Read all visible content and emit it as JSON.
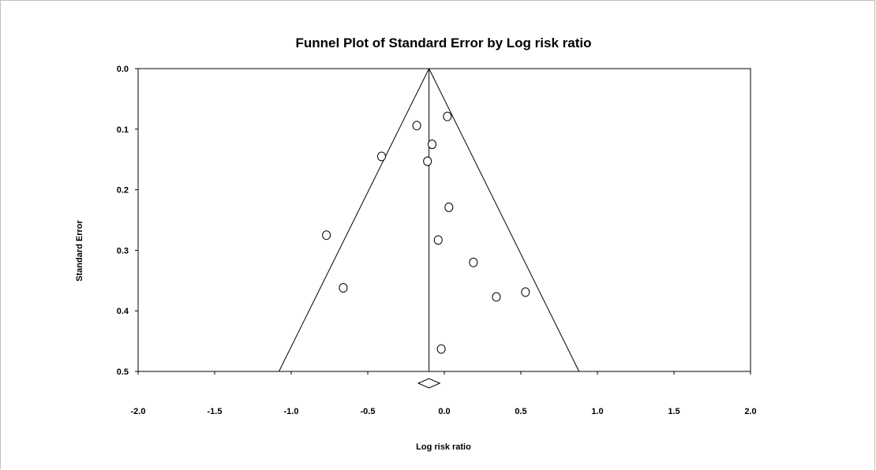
{
  "chart_data": {
    "type": "scatter",
    "title": "Funnel Plot of Standard Error by Log risk ratio",
    "xlabel": "Log risk ratio",
    "ylabel": "Standard Error",
    "xlim": [
      -2.0,
      2.0
    ],
    "ylim": [
      0.0,
      0.5
    ],
    "y_inverted": true,
    "grid": false,
    "x_ticks": [
      "-2.0",
      "-1.5",
      "-1.0",
      "-0.5",
      "0.0",
      "0.5",
      "1.0",
      "1.5",
      "2.0"
    ],
    "y_ticks": [
      "0.0",
      "0.1",
      "0.2",
      "0.3",
      "0.4",
      "0.5"
    ],
    "summary_estimate": -0.1,
    "funnel": {
      "apex_se": 0.0,
      "base_se": 0.5,
      "base_left": -1.08,
      "base_right": 0.88
    },
    "summary_diamond": {
      "center": -0.1,
      "lower": -0.17,
      "upper": -0.03
    },
    "points": [
      {
        "x": 0.02,
        "y": 0.079
      },
      {
        "x": -0.18,
        "y": 0.094
      },
      {
        "x": -0.08,
        "y": 0.125
      },
      {
        "x": -0.41,
        "y": 0.145
      },
      {
        "x": -0.11,
        "y": 0.153
      },
      {
        "x": 0.03,
        "y": 0.229
      },
      {
        "x": -0.77,
        "y": 0.275
      },
      {
        "x": -0.04,
        "y": 0.283
      },
      {
        "x": 0.19,
        "y": 0.32
      },
      {
        "x": -0.66,
        "y": 0.362
      },
      {
        "x": 0.53,
        "y": 0.369
      },
      {
        "x": 0.34,
        "y": 0.377
      },
      {
        "x": -0.02,
        "y": 0.463
      }
    ]
  }
}
